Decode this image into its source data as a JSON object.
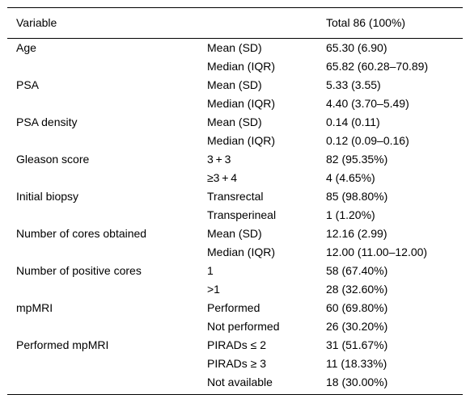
{
  "header": {
    "variable": "Variable",
    "group": "",
    "total": "Total 86 (100%)"
  },
  "rows": [
    {
      "variable": "Age",
      "stat": "Mean (SD)",
      "value": "65.30 (6.90)"
    },
    {
      "variable": "",
      "stat": "Median (IQR)",
      "value": "65.82 (60.28–70.89)"
    },
    {
      "variable": "PSA",
      "stat": "Mean (SD)",
      "value": "5.33 (3.55)"
    },
    {
      "variable": "",
      "stat": "Median (IQR)",
      "value": "4.40 (3.70–5.49)"
    },
    {
      "variable": "PSA density",
      "stat": "Mean (SD)",
      "value": "0.14 (0.11)"
    },
    {
      "variable": "",
      "stat": "Median (IQR)",
      "value": "0.12 (0.09–0.16)"
    },
    {
      "variable": "Gleason score",
      "stat": "3 + 3",
      "value": "82 (95.35%)"
    },
    {
      "variable": "",
      "stat": "≥3 + 4",
      "value": "4 (4.65%)"
    },
    {
      "variable": "Initial biopsy",
      "stat": "Transrectal",
      "value": "85 (98.80%)"
    },
    {
      "variable": "",
      "stat": "Transperineal",
      "value": "1 (1.20%)"
    },
    {
      "variable": "Number of cores obtained",
      "stat": "Mean (SD)",
      "value": "12.16 (2.99)"
    },
    {
      "variable": "",
      "stat": "Median (IQR)",
      "value": "12.00 (11.00–12.00)"
    },
    {
      "variable": "Number of positive cores",
      "stat": "1",
      "value": "58 (67.40%)"
    },
    {
      "variable": "",
      "stat": ">1",
      "value": "28 (32.60%)"
    },
    {
      "variable": "mpMRI",
      "stat": "Performed",
      "value": "60 (69.80%)"
    },
    {
      "variable": "",
      "stat": "Not performed",
      "value": "26 (30.20%)"
    },
    {
      "variable": "Performed mpMRI",
      "stat": "PIRADs ≤ 2",
      "value": "31 (51.67%)"
    },
    {
      "variable": "",
      "stat": "PIRADs ≥ 3",
      "value": "11 (18.33%)"
    },
    {
      "variable": "",
      "stat": "Not available",
      "value": "18 (30.00%)"
    }
  ]
}
